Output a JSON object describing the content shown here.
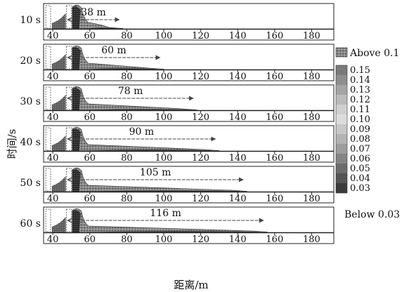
{
  "chart_data": {
    "type": "heatmap",
    "xlabel": "距离/m",
    "ylabel": "时间/s",
    "xlim": [
      35,
      192
    ],
    "x_ticks": [
      40,
      60,
      80,
      100,
      120,
      140,
      160,
      180
    ],
    "panels": [
      {
        "time": "10 s",
        "distance": "38 m",
        "arrow_start": 48,
        "arrow_end": 76,
        "front": 78
      },
      {
        "time": "20 s",
        "distance": "60 m",
        "arrow_start": 48,
        "arrow_end": 98,
        "front": 100
      },
      {
        "time": "30 s",
        "distance": "78 m",
        "arrow_start": 48,
        "arrow_end": 116,
        "front": 118
      },
      {
        "time": "40 s",
        "distance": "90 m",
        "arrow_start": 48,
        "arrow_end": 128,
        "front": 130
      },
      {
        "time": "50 s",
        "distance": "105 m",
        "arrow_start": 48,
        "arrow_end": 143,
        "front": 145
      },
      {
        "time": "60 s",
        "distance": "116 m",
        "arrow_start": 48,
        "arrow_end": 154,
        "front": 156
      }
    ],
    "colorbar": {
      "above_label": "Above 0.1",
      "below_label": "Below 0.03",
      "levels": [
        "0.15",
        "0.14",
        "0.13",
        "0.12",
        "0.11",
        "0.10",
        "0.09",
        "0.08",
        "0.07",
        "0.06",
        "0.05",
        "0.04",
        "0.03"
      ],
      "colors": [
        "#7a7a7a",
        "#8e8e8e",
        "#a4a4a4",
        "#bbbbbb",
        "#cfcfcf",
        "#dcdcdc",
        "#c8c8c8",
        "#b3b3b3",
        "#9c9c9c",
        "#858585",
        "#6c6c6c",
        "#545454",
        "#3c3c3c"
      ]
    }
  }
}
